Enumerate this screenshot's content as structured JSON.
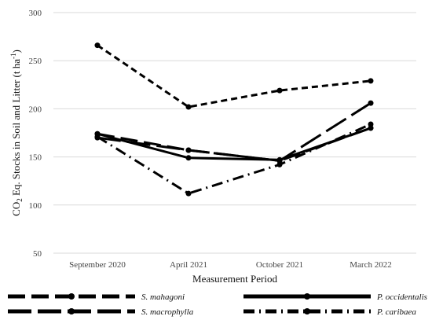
{
  "chart_data": {
    "type": "line",
    "xlabel": "Measurement Period",
    "ylabel_main": "CO",
    "ylabel_sub": "2",
    "ylabel_mid": " Eq. Stocks in Soil and Litter (t ha",
    "ylabel_sup": "-1",
    "ylabel_end": ")",
    "ylim": [
      50,
      300
    ],
    "yticks": [
      50,
      100,
      150,
      200,
      250,
      300
    ],
    "categories": [
      "September 2020",
      "April 2021",
      "October 2021",
      "March 2022"
    ],
    "grid": true,
    "legend_position": "bottom",
    "series": [
      {
        "name": "S. mahagoni",
        "style": "long-dash",
        "values": [
          174,
          157,
          146,
          180
        ]
      },
      {
        "name": "P. occidentalis",
        "style": "solid",
        "values": [
          174,
          149,
          147,
          180
        ]
      },
      {
        "name": "S. macrophylla",
        "style": "very-long-dash",
        "values": [
          170,
          157,
          146,
          206
        ]
      },
      {
        "name": "P. caribaea",
        "style": "dash-dot",
        "values": [
          171,
          112,
          142,
          184
        ]
      },
      {
        "name": "",
        "style": "short-dash",
        "values": [
          266,
          202,
          219,
          229
        ]
      }
    ]
  }
}
